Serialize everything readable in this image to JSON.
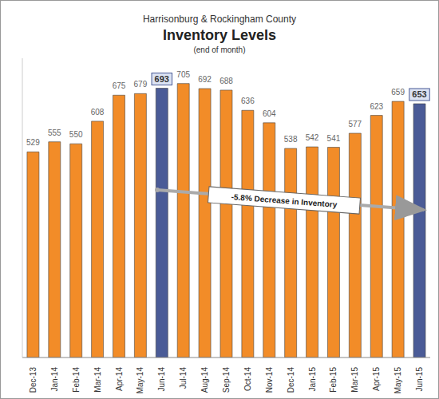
{
  "chart_data": {
    "type": "bar",
    "title": "Inventory Levels",
    "subtitle": "(end of month)",
    "annotations": [
      "Harrisonburg & Rockingham County",
      "-5.8% Decrease in Inventory"
    ],
    "categories": [
      "Dec-13",
      "Jan-14",
      "Feb-14",
      "Mar-14",
      "Apr-14",
      "May-14",
      "Jun-14",
      "Jul-14",
      "Aug-14",
      "Sep-14",
      "Oct-14",
      "Nov-14",
      "Dec-14",
      "Jan-15",
      "Feb-15",
      "Mar-15",
      "Apr-15",
      "May-15",
      "Jun-15"
    ],
    "values": [
      529,
      555,
      550,
      608,
      675,
      679,
      693,
      705,
      692,
      688,
      636,
      604,
      538,
      542,
      541,
      577,
      623,
      659,
      653
    ],
    "colors": [
      "#f28c28",
      "#f28c28",
      "#f28c28",
      "#f28c28",
      "#f28c28",
      "#f28c28",
      "#4a5b97",
      "#f28c28",
      "#f28c28",
      "#f28c28",
      "#f28c28",
      "#f28c28",
      "#f28c28",
      "#f28c28",
      "#f28c28",
      "#f28c28",
      "#f28c28",
      "#f28c28",
      "#4a5b97"
    ],
    "ylim": [
      0,
      770
    ],
    "grid": false,
    "data_labels": true,
    "tick_labels": "x"
  }
}
